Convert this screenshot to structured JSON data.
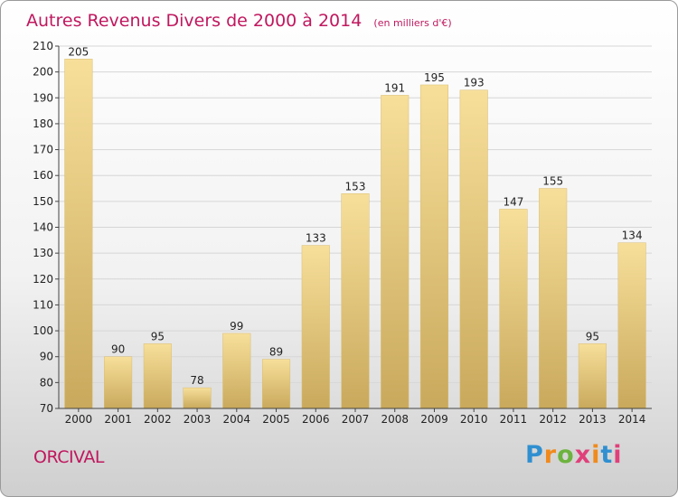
{
  "chart_data": {
    "type": "bar",
    "title": "Autres Revenus Divers de 2000 à 2014",
    "subtitle": "(en milliers d'€)",
    "categories": [
      "2000",
      "2001",
      "2002",
      "2003",
      "2004",
      "2005",
      "2006",
      "2007",
      "2008",
      "2009",
      "2010",
      "2011",
      "2012",
      "2013",
      "2014"
    ],
    "values": [
      205,
      90,
      95,
      78,
      99,
      89,
      133,
      153,
      191,
      195,
      193,
      147,
      155,
      95,
      134
    ],
    "ylim": [
      70,
      210
    ],
    "yticks": [
      70,
      80,
      90,
      100,
      110,
      120,
      130,
      140,
      150,
      160,
      170,
      180,
      190,
      200,
      210
    ],
    "grid": true,
    "bar_color": "#e8c97a"
  },
  "footer": {
    "commune": "ORCIVAL",
    "logo": "Proxiti"
  },
  "colors": {
    "title": "#c0185e",
    "logo": [
      "#2f8fd0",
      "#6db33f",
      "#f08a1c",
      "#e0407a"
    ]
  }
}
